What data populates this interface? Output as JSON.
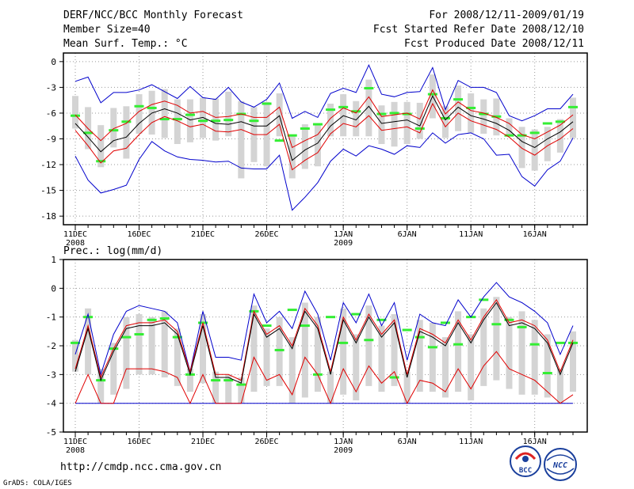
{
  "header": {
    "title": "DERF/NCC/BCC Monthly Forecast",
    "member_size": "Member Size=40",
    "variable": "Mean Surf. Temp.: °C",
    "period": "For 2008/12/11-2009/01/19",
    "started": "Fcst Started Refer Date 2008/12/10",
    "produced": "Fcst Produced Date 2008/12/11"
  },
  "footer": {
    "url": "http://cmdp.ncc.cma.gov.cn",
    "grads": "GrADS: COLA/IGES",
    "logo_bcc": "BCC",
    "logo_ncc": "NCC"
  },
  "colors": {
    "ensemble_mean": "#000000",
    "std_band": "#e00000",
    "min_max": "#0000cc",
    "spread_bar": "#d4d4d4",
    "member_mark": "#33ee33",
    "grid": "#999999"
  },
  "chart_data": [
    {
      "type": "line",
      "title": "Mean Surf. Temp.: °C",
      "ylim": [
        -19,
        1
      ],
      "yticks": [
        0,
        -3,
        -6,
        -9,
        -12,
        -15,
        -18
      ],
      "xtick_labels": [
        "11DEC",
        "16DEC",
        "21DEC",
        "26DEC",
        "1JAN",
        "6JAN",
        "11JAN",
        "16JAN"
      ],
      "xtick_days": [
        1,
        6,
        11,
        16,
        22,
        27,
        32,
        37
      ],
      "xyear_labels": [
        {
          "day": 1,
          "label": "2008"
        },
        {
          "day": 22,
          "label": "2009"
        }
      ],
      "days": [
        1,
        2,
        3,
        4,
        5,
        6,
        7,
        8,
        9,
        10,
        11,
        12,
        13,
        14,
        15,
        16,
        17,
        18,
        19,
        20,
        21,
        22,
        23,
        24,
        25,
        26,
        27,
        28,
        29,
        30,
        31,
        32,
        33,
        34,
        35,
        36,
        37,
        38,
        39,
        40
      ],
      "series": [
        {
          "name": "ensemble_mean",
          "values": [
            -7.2,
            -8.8,
            -10.5,
            -9.2,
            -8.8,
            -7.2,
            -6.0,
            -5.5,
            -6.0,
            -6.8,
            -6.5,
            -7.2,
            -7.3,
            -7.0,
            -7.5,
            -7.5,
            -6.3,
            -11.5,
            -10.3,
            -9.5,
            -7.5,
            -6.3,
            -6.8,
            -5.2,
            -7.2,
            -7.0,
            -6.8,
            -7.5,
            -4.0,
            -6.8,
            -5.3,
            -6.3,
            -6.7,
            -7.2,
            -8.0,
            -9.3,
            -10.0,
            -9.0,
            -8.2,
            -7.0
          ]
        },
        {
          "name": "std_upper",
          "values": [
            -6.2,
            -7.8,
            -9.2,
            -7.8,
            -7.2,
            -5.8,
            -5.0,
            -4.6,
            -5.1,
            -6.0,
            -5.8,
            -6.5,
            -6.4,
            -6.1,
            -6.5,
            -6.5,
            -5.3,
            -10.0,
            -9.2,
            -8.5,
            -6.6,
            -5.4,
            -6.0,
            -4.1,
            -6.4,
            -6.2,
            -6.0,
            -6.7,
            -3.3,
            -6.1,
            -4.7,
            -5.7,
            -6.0,
            -6.5,
            -7.2,
            -8.5,
            -9.0,
            -8.2,
            -7.4,
            -6.2
          ]
        },
        {
          "name": "std_lower",
          "values": [
            -8.0,
            -9.8,
            -11.8,
            -10.4,
            -10.1,
            -8.5,
            -7.1,
            -6.4,
            -6.9,
            -7.6,
            -7.3,
            -8.1,
            -8.2,
            -7.9,
            -8.5,
            -8.5,
            -7.3,
            -12.6,
            -11.5,
            -10.6,
            -8.4,
            -7.2,
            -7.6,
            -6.3,
            -8.0,
            -7.8,
            -7.6,
            -8.3,
            -4.9,
            -7.6,
            -6.0,
            -6.9,
            -7.4,
            -7.9,
            -8.8,
            -10.1,
            -10.9,
            -9.8,
            -9.0,
            -7.8
          ]
        },
        {
          "name": "max",
          "values": [
            -2.3,
            -1.8,
            -4.8,
            -3.6,
            -3.6,
            -3.3,
            -2.7,
            -3.5,
            -4.3,
            -2.9,
            -4.2,
            -4.4,
            -3.0,
            -4.7,
            -5.3,
            -4.4,
            -2.5,
            -6.6,
            -5.8,
            -6.5,
            -3.7,
            -3.1,
            -3.6,
            -0.4,
            -3.8,
            -4.1,
            -3.6,
            -3.5,
            -0.7,
            -5.6,
            -2.2,
            -3.0,
            -3.0,
            -3.6,
            -6.3,
            -6.9,
            -6.3,
            -5.5,
            -5.5,
            -3.8
          ]
        },
        {
          "name": "min",
          "values": [
            -11.0,
            -13.8,
            -15.3,
            -14.9,
            -14.4,
            -11.4,
            -9.3,
            -10.4,
            -11.1,
            -11.4,
            -11.5,
            -11.7,
            -11.6,
            -12.4,
            -12.5,
            -12.5,
            -10.9,
            -17.3,
            -15.8,
            -14.1,
            -11.6,
            -10.2,
            -11.0,
            -9.8,
            -10.2,
            -10.8,
            -9.8,
            -10.0,
            -8.3,
            -9.5,
            -8.5,
            -8.3,
            -9.0,
            -10.9,
            -10.8,
            -13.4,
            -14.5,
            -12.6,
            -11.6,
            -8.9
          ]
        },
        {
          "name": "spread_top",
          "values": [
            -4.0,
            -5.3,
            -7.4,
            -5.4,
            -5.2,
            -3.8,
            -3.4,
            -3.2,
            -4.4,
            -4.4,
            -4.2,
            -4.3,
            -3.5,
            -4.6,
            -5.3,
            -4.7,
            -3.7,
            -8.7,
            -7.3,
            -7.2,
            -4.9,
            -3.8,
            -4.6,
            -2.1,
            -5.1,
            -4.7,
            -4.7,
            -4.8,
            -1.5,
            -5.2,
            -2.8,
            -3.7,
            -4.4,
            -4.3,
            -6.6,
            -7.6,
            -7.9,
            -7.6,
            -6.7,
            -4.2
          ]
        },
        {
          "name": "spread_bottom",
          "values": [
            -7.8,
            -10.2,
            -12.3,
            -10.0,
            -11.3,
            -8.4,
            -8.5,
            -8.9,
            -9.6,
            -9.4,
            -8.9,
            -9.2,
            -8.7,
            -13.6,
            -11.7,
            -12.2,
            -8.7,
            -13.6,
            -12.5,
            -12.2,
            -8.7,
            -8.7,
            -8.7,
            -8.7,
            -9.6,
            -9.9,
            -9.6,
            -9.0,
            -6.6,
            -8.9,
            -8.1,
            -8.3,
            -8.4,
            -8.6,
            -8.7,
            -12.4,
            -12.7,
            -11.6,
            -10.6,
            -8.9
          ]
        },
        {
          "name": "member_mark",
          "values": [
            -6.3,
            -8.3,
            -11.6,
            -8.0,
            -7.0,
            -5.2,
            -5.4,
            -6.7,
            -6.7,
            -6.2,
            -6.9,
            -6.9,
            -6.8,
            -6.1,
            -6.9,
            -4.9,
            -9.2,
            -8.6,
            -7.8,
            -7.3,
            -5.6,
            -5.3,
            -5.8,
            -3.1,
            -6.1,
            -6.0,
            -6.1,
            -7.8,
            -3.8,
            -6.6,
            -4.4,
            -5.4,
            -6.1,
            -6.4,
            -8.6,
            -8.6,
            -8.3,
            -7.2,
            -7.0,
            -5.3
          ]
        }
      ]
    },
    {
      "type": "line",
      "title": "Prec.: log(mm/d)",
      "ylim": [
        -5,
        1
      ],
      "yticks": [
        1,
        0,
        -1,
        -2,
        -3,
        -4,
        -5
      ],
      "xtick_labels": [
        "11DEC",
        "16DEC",
        "21DEC",
        "26DEC",
        "1JAN",
        "6JAN",
        "11JAN",
        "16JAN"
      ],
      "xtick_days": [
        1,
        6,
        11,
        16,
        22,
        27,
        32,
        37
      ],
      "xyear_labels": [
        {
          "day": 1,
          "label": "2008"
        },
        {
          "day": 22,
          "label": "2009"
        }
      ],
      "days": [
        1,
        2,
        3,
        4,
        5,
        6,
        7,
        8,
        9,
        10,
        11,
        12,
        13,
        14,
        15,
        16,
        17,
        18,
        19,
        20,
        21,
        22,
        23,
        24,
        25,
        26,
        27,
        28,
        29,
        30,
        31,
        32,
        33,
        34,
        35,
        36,
        37,
        38,
        39,
        40
      ],
      "series": [
        {
          "name": "ensemble_mean",
          "values": [
            -2.9,
            -1.4,
            -3.2,
            -2.2,
            -1.4,
            -1.3,
            -1.3,
            -1.2,
            -1.6,
            -3.0,
            -1.3,
            -3.1,
            -3.1,
            -3.3,
            -0.9,
            -1.7,
            -1.4,
            -2.1,
            -0.8,
            -1.4,
            -3.0,
            -1.1,
            -1.9,
            -1.0,
            -1.7,
            -1.2,
            -3.1,
            -1.5,
            -1.7,
            -2.0,
            -1.2,
            -1.9,
            -1.1,
            -0.5,
            -1.3,
            -1.2,
            -1.4,
            -1.9,
            -3.0,
            -1.9
          ]
        },
        {
          "name": "std_upper",
          "values": [
            -2.8,
            -1.3,
            -3.1,
            -2.1,
            -1.3,
            -1.2,
            -1.2,
            -1.1,
            -1.5,
            -2.9,
            -1.2,
            -3.0,
            -3.0,
            -3.2,
            -0.8,
            -1.6,
            -1.3,
            -2.0,
            -0.7,
            -1.3,
            -2.9,
            -1.0,
            -1.8,
            -0.9,
            -1.6,
            -1.1,
            -3.0,
            -1.4,
            -1.6,
            -1.9,
            -1.1,
            -1.8,
            -1.0,
            -0.4,
            -1.2,
            -1.1,
            -1.3,
            -1.8,
            -2.9,
            -1.8
          ]
        },
        {
          "name": "std_lower",
          "values": [
            -4.0,
            -3.0,
            -4.0,
            -4.0,
            -2.8,
            -2.8,
            -2.8,
            -2.9,
            -3.1,
            -4.0,
            -3.0,
            -4.0,
            -4.0,
            -4.0,
            -2.4,
            -3.2,
            -3.0,
            -3.7,
            -2.4,
            -3.0,
            -4.0,
            -2.8,
            -3.6,
            -2.7,
            -3.3,
            -2.9,
            -4.0,
            -3.2,
            -3.3,
            -3.6,
            -2.8,
            -3.5,
            -2.7,
            -2.2,
            -2.8,
            -3.0,
            -3.2,
            -3.6,
            -4.0,
            -3.7
          ]
        },
        {
          "name": "max",
          "values": [
            -2.3,
            -0.9,
            -3.0,
            -1.6,
            -0.8,
            -0.6,
            -0.7,
            -0.8,
            -1.2,
            -2.9,
            -0.8,
            -2.4,
            -2.4,
            -2.5,
            -0.2,
            -1.2,
            -0.8,
            -1.4,
            -0.1,
            -0.9,
            -2.5,
            -0.5,
            -1.2,
            -0.2,
            -1.3,
            -0.5,
            -2.5,
            -0.9,
            -1.2,
            -1.3,
            -0.4,
            -1.0,
            -0.3,
            0.2,
            -0.3,
            -0.5,
            -0.8,
            -1.2,
            -2.3,
            -1.3
          ]
        },
        {
          "name": "min",
          "values": [
            -4,
            -4,
            -4,
            -4,
            -4,
            -4,
            -4,
            -4,
            -4,
            -4,
            -4,
            -4,
            -4,
            -4,
            -4,
            -4,
            -4,
            -4,
            -4,
            -4,
            -4,
            -4,
            -4,
            -4,
            -4,
            -4,
            -4,
            -4,
            -4,
            -4,
            -4,
            -4,
            -4,
            -4,
            -4,
            -4,
            -4,
            -4,
            -4,
            -4
          ]
        },
        {
          "name": "spread_top",
          "values": [
            -1.8,
            -0.7,
            -2.8,
            -1.9,
            -1.0,
            -0.9,
            -1.0,
            -0.8,
            -1.4,
            -2.8,
            -0.9,
            -2.9,
            -3.0,
            -3.1,
            -0.6,
            -1.4,
            -1.0,
            -1.7,
            -0.5,
            -1.0,
            -2.9,
            -0.7,
            -1.6,
            -0.6,
            -1.3,
            -0.9,
            -2.9,
            -1.1,
            -1.2,
            -1.7,
            -0.8,
            -1.6,
            -0.7,
            -0.3,
            -1.0,
            -0.8,
            -1.1,
            -1.6,
            -2.8,
            -1.5
          ]
        },
        {
          "name": "spread_bottom",
          "values": [
            -2.9,
            -3.0,
            -4.0,
            -3.7,
            -3.5,
            -3.0,
            -3.0,
            -3.1,
            -3.4,
            -3.6,
            -3.3,
            -4.0,
            -4.0,
            -4.0,
            -3.6,
            -3.4,
            -3.4,
            -4.0,
            -3.8,
            -3.6,
            -4.0,
            -3.7,
            -3.9,
            -3.4,
            -3.6,
            -3.4,
            -4.0,
            -3.6,
            -3.6,
            -3.8,
            -3.6,
            -3.9,
            -3.4,
            -3.2,
            -3.5,
            -3.7,
            -3.7,
            -3.8,
            -4.0,
            -3.6
          ]
        },
        {
          "name": "member_mark",
          "values": [
            -1.9,
            -1.0,
            -3.2,
            -2.1,
            -1.7,
            -1.6,
            -1.1,
            -1.05,
            -1.7,
            -3.0,
            -1.2,
            -3.2,
            -3.2,
            -3.35,
            -0.8,
            -1.3,
            -2.15,
            -0.75,
            -1.3,
            -3.0,
            -1.0,
            -1.9,
            -0.9,
            -1.8,
            -1.1,
            -3.1,
            -1.45,
            -1.7,
            -2.05,
            -1.2,
            -1.95,
            -1.0,
            -0.4,
            -1.25,
            -1.1,
            -1.35,
            -1.95,
            -2.95,
            -1.9,
            -1.9
          ]
        }
      ]
    }
  ]
}
